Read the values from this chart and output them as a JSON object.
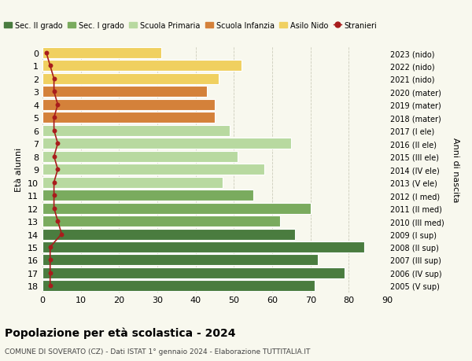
{
  "ages": [
    18,
    17,
    16,
    15,
    14,
    13,
    12,
    11,
    10,
    9,
    8,
    7,
    6,
    5,
    4,
    3,
    2,
    1,
    0
  ],
  "right_labels": [
    "2005 (V sup)",
    "2006 (IV sup)",
    "2007 (III sup)",
    "2008 (II sup)",
    "2009 (I sup)",
    "2010 (III med)",
    "2011 (II med)",
    "2012 (I med)",
    "2013 (V ele)",
    "2014 (IV ele)",
    "2015 (III ele)",
    "2016 (II ele)",
    "2017 (I ele)",
    "2018 (mater)",
    "2019 (mater)",
    "2020 (mater)",
    "2021 (nido)",
    "2022 (nido)",
    "2023 (nido)"
  ],
  "values": [
    71,
    79,
    72,
    84,
    66,
    62,
    70,
    55,
    47,
    58,
    51,
    65,
    49,
    45,
    45,
    43,
    46,
    52,
    31
  ],
  "stranieri": [
    2,
    2,
    2,
    2,
    5,
    4,
    3,
    3,
    3,
    4,
    3,
    4,
    3,
    3,
    4,
    3,
    3,
    2,
    1
  ],
  "bar_colors": [
    "#4a7c3f",
    "#4a7c3f",
    "#4a7c3f",
    "#4a7c3f",
    "#4a7c3f",
    "#7aab5e",
    "#7aab5e",
    "#7aab5e",
    "#b8d9a0",
    "#b8d9a0",
    "#b8d9a0",
    "#b8d9a0",
    "#b8d9a0",
    "#d4813a",
    "#d4813a",
    "#d4813a",
    "#f0d060",
    "#f0d060",
    "#f0d060"
  ],
  "legend_labels": [
    "Sec. II grado",
    "Sec. I grado",
    "Scuola Primaria",
    "Scuola Infanzia",
    "Asilo Nido",
    "Stranieri"
  ],
  "legend_colors": [
    "#4a7c3f",
    "#7aab5e",
    "#b8d9a0",
    "#d4813a",
    "#f0d060",
    "#a81c1c"
  ],
  "stranieri_color": "#a81c1c",
  "title": "Popolazione per età scolastica - 2024",
  "subtitle": "COMUNE DI SOVERATO (CZ) - Dati ISTAT 1° gennaio 2024 - Elaborazione TUTTITALIA.IT",
  "ylabel_left": "Età alunni",
  "ylabel_right": "Anni di nascita",
  "xlim": [
    0,
    90
  ],
  "xticks": [
    0,
    10,
    20,
    30,
    40,
    50,
    60,
    70,
    80,
    90
  ],
  "bg_color": "#f8f8ee",
  "grid_color": "#ccccbb"
}
